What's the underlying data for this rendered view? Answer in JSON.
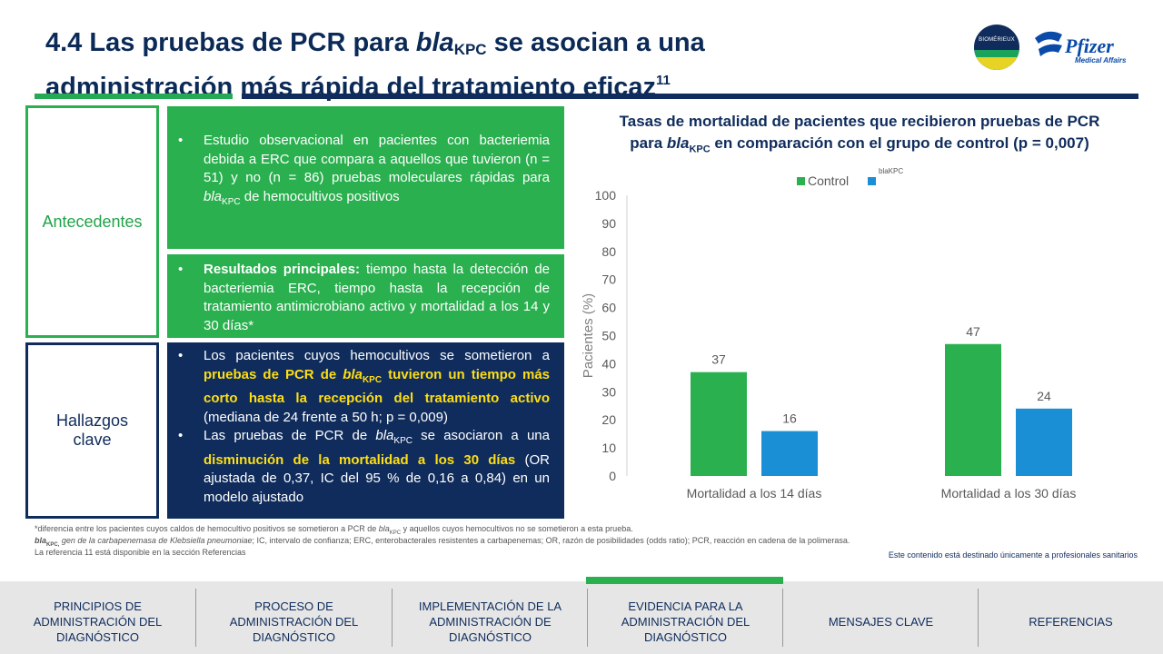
{
  "title": {
    "line1_pre": "4.4 Las pruebas de PCR para ",
    "gene": "bla",
    "gene_sub": "KPC",
    "line1_post": " se asocian a una",
    "line2": "administración más rápida del tratamiento eficaz",
    "ref": "11"
  },
  "logos": {
    "biomerieux": "BIOMÉRIEUX",
    "pfizer": "Pfizer",
    "pfizer_sub": "Medical Affairs"
  },
  "table": {
    "antecedentes_label": "Antecedentes",
    "hallazgos_label": "Hallazgos clave",
    "p1": {
      "a": "Estudio observacional en pacientes con bacteriemia debida a ERC que compara a aquellos que tuvieron (n = 51) y no (n = 86) pruebas moleculares rápidas para ",
      "gene": "bla",
      "gene_sub": "KPC",
      "b": " de hemocultivos positivos"
    },
    "p2": {
      "bold": "Resultados principales:",
      "rest": " tiempo hasta la detección de bacteriemia ERC, tiempo hasta la recepción de tratamiento antimicrobiano activo y mortalidad a los 14 y 30 días*"
    },
    "p3": {
      "b1_a": "Los pacientes cuyos hemocultivos se sometieron a ",
      "b1_y1": "pruebas de PCR de ",
      "gene": "bla",
      "gene_sub": "KPC",
      "b1_y2": " tuvieron un tiempo más corto hasta la recepción del tratamiento activo",
      "b1_b": " (mediana de 24 frente a 50 h; p = 0,009)",
      "b2_a": "Las pruebas de PCR de ",
      "b2_b": " se asociaron a una ",
      "b2_y": "disminución de la mortalidad a los 30 días",
      "b2_c": " (OR ajustada de 0,37, IC del 95 % de 0,16 a 0,84) en un modelo ajustado"
    }
  },
  "chart_title": {
    "l1": "Tasas de mortalidad de pacientes que recibieron pruebas de PCR",
    "l2_pre": "para ",
    "gene": "bla",
    "gene_sub": "KPC",
    "l2_post": " en comparación con el grupo de control (p = 0,007)"
  },
  "chart_data": {
    "type": "bar",
    "categories": [
      "Mortalidad a los 14 días",
      "Mortalidad a los 30 días"
    ],
    "series": [
      {
        "name": "Control",
        "values": [
          37,
          47
        ],
        "color": "#2ab04f"
      },
      {
        "name": "blaKPC",
        "values": [
          16,
          24
        ],
        "color": "#1a8fd6"
      }
    ],
    "ylabel": "Pacientes (%)",
    "ylim": [
      0,
      100
    ],
    "yticks": [
      0,
      10,
      20,
      30,
      40,
      50,
      60,
      70,
      80,
      90,
      100
    ],
    "legend": "top-center",
    "grid": false
  },
  "footnotes": {
    "f1_a": "*diferencia entre los pacientes cuyos caldos de hemocultivo positivos se sometieron a PCR de ",
    "f1_gene": "bla",
    "f1_sub": "KPC",
    "f1_b": " y aquellos cuyos hemocultivos no se sometieron a esta prueba.",
    "f2_gene": "bla",
    "f2_sub": "KPC,",
    "f2_a": " gen de la carbapenemasa de Klebsiella pneumoniae",
    "f2_b": "; IC, intervalo de confianza; ERC, enterobacterales resistentes a carbapenemas; OR, razón de posibilidades (odds ratio); PCR, reacción en cadena de la polimerasa.",
    "f3": "La referencia 11 está disponible en la sección Referencias",
    "disclaimer": "Este contenido está destinado únicamente a profesionales sanitarios"
  },
  "nav": {
    "items": [
      "PRINCIPIOS DE ADMINISTRACIÓN DEL DIAGNÓSTICO",
      "PROCESO DE ADMINISTRACIÓN DEL DIAGNÓSTICO",
      "IMPLEMENTACIÓN DE LA ADMINISTRACIÓN DE DIAGNÓSTICO",
      "EVIDENCIA PARA LA ADMINISTRACIÓN DEL DIAGNÓSTICO",
      "MENSAJES CLAVE",
      "REFERENCIAS"
    ],
    "active_index": 3
  }
}
